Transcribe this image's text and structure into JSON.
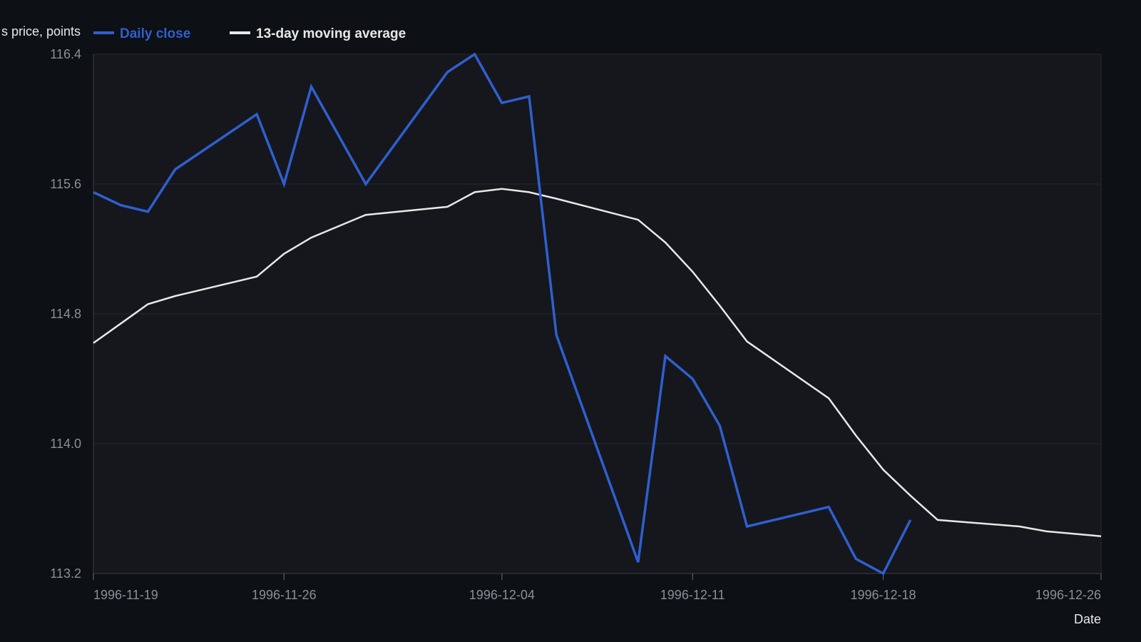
{
  "chart_data": {
    "type": "line",
    "title": "",
    "xlabel": "Date",
    "ylabel": "s price, points",
    "ylim": [
      113.2,
      116.4
    ],
    "yticks": [
      "116.4",
      "115.6",
      "114.8",
      "114.0",
      "113.2"
    ],
    "xticks": [
      "1996-11-19",
      "1996-11-26",
      "1996-12-04",
      "1996-12-11",
      "1996-12-18",
      "1996-12-26"
    ],
    "grid": true,
    "legend_position": "top-left",
    "colors": {
      "background": "#0d1014",
      "plot_bg": "#15171c",
      "close": "#2f5fd0",
      "ma": "#e8e8e6"
    },
    "x": [
      "1996-11-19",
      "1996-11-20",
      "1996-11-21",
      "1996-11-22",
      "1996-11-25",
      "1996-11-26",
      "1996-11-27",
      "1996-11-29",
      "1996-12-02",
      "1996-12-03",
      "1996-12-04",
      "1996-12-05",
      "1996-12-06",
      "1996-12-09",
      "1996-12-10",
      "1996-12-11",
      "1996-12-12",
      "1996-12-13",
      "1996-12-16",
      "1996-12-17",
      "1996-12-18",
      "1996-12-19",
      "1996-12-20",
      "1996-12-23",
      "1996-12-24",
      "1996-12-26"
    ],
    "series": [
      {
        "name": "Daily close",
        "color": "#2f5fd0",
        "values": [
          115.55,
          115.47,
          115.43,
          115.69,
          116.03,
          115.6,
          116.2,
          115.6,
          116.29,
          116.4,
          116.1,
          116.14,
          114.67,
          113.27,
          114.54,
          114.4,
          114.11,
          113.49,
          113.61,
          113.29,
          113.2,
          113.53,
          null,
          null,
          null,
          null
        ]
      },
      {
        "name": "13-day moving average",
        "color": "#e8e8e6",
        "values": [
          114.62,
          114.74,
          114.86,
          114.91,
          115.03,
          115.17,
          115.27,
          115.41,
          115.46,
          115.55,
          115.57,
          115.55,
          115.51,
          115.38,
          115.24,
          115.06,
          114.85,
          114.63,
          114.28,
          114.05,
          113.84,
          113.68,
          113.53,
          113.49,
          113.46,
          113.43
        ]
      }
    ]
  }
}
